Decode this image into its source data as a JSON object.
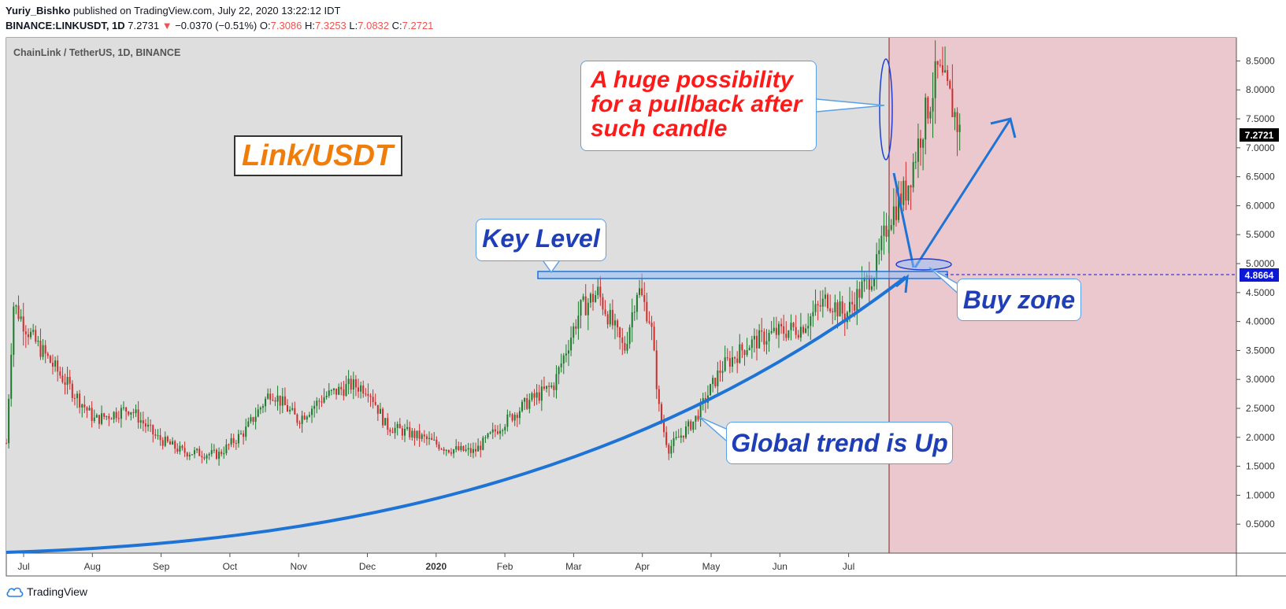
{
  "header": {
    "author": "Yuriy_Bishko",
    "published_text": "published on TradingView.com, July 22, 2020 13:22:12 IDT",
    "symbol": "BINANCE:LINKUSDT, 1D",
    "last": "7.2731",
    "change": "−0.0370 (−0.51%)",
    "open_label": "O:",
    "open": "7.3086",
    "high_label": "H:",
    "high": "7.3253",
    "low_label": "L:",
    "low": "7.0832",
    "close_label": "C:",
    "close": "7.2721"
  },
  "chart_title": "ChainLink / TetherUS, 1D, BINANCE",
  "brand_label": "Link/USDT",
  "footer": {
    "logo_text": "TradingView"
  },
  "annotations": {
    "pullback": [
      "A huge possibility",
      "for a pullback after",
      "such candle"
    ],
    "key_level": "Key Level",
    "buy_zone": "Buy zone",
    "global_trend": "Global trend is Up"
  },
  "colors": {
    "up": "#1b7a2b",
    "down": "#d12c2c",
    "plot_bg": "#dedede",
    "future_bg": "#ebc8cd",
    "arrow": "#1e73d6",
    "price_tag": "#000000",
    "level_tag": "#0d18d6"
  },
  "chart_data": {
    "type": "candlestick",
    "title": "ChainLink / TetherUS, 1D, BINANCE",
    "x_ticks": [
      "Jul",
      "Aug",
      "Sep",
      "Oct",
      "Nov",
      "Dec",
      "2020",
      "Feb",
      "Mar",
      "Apr",
      "May",
      "Jun",
      "Jul"
    ],
    "y_ticks": [
      "0.5000",
      "1.0000",
      "1.5000",
      "2.0000",
      "2.5000",
      "3.0000",
      "3.5000",
      "4.0000",
      "4.5000",
      "5.0000",
      "5.5000",
      "6.0000",
      "6.5000",
      "7.0000",
      "7.5000",
      "8.0000",
      "8.5000"
    ],
    "ylim": [
      0.0,
      8.9
    ],
    "last_price_tag": "7.2721",
    "key_level_tag": "4.8664",
    "key_level": 4.8664,
    "price_path": [
      [
        0,
        1.9
      ],
      [
        0.008,
        4.3
      ],
      [
        0.03,
        3.7
      ],
      [
        0.06,
        3.1
      ],
      [
        0.1,
        2.3
      ],
      [
        0.14,
        2.5
      ],
      [
        0.17,
        2.0
      ],
      [
        0.2,
        1.75
      ],
      [
        0.24,
        1.7
      ],
      [
        0.27,
        2.1
      ],
      [
        0.3,
        2.8
      ],
      [
        0.33,
        2.3
      ],
      [
        0.36,
        2.7
      ],
      [
        0.39,
        2.9
      ],
      [
        0.41,
        2.85
      ],
      [
        0.43,
        2.2
      ],
      [
        0.47,
        2.0
      ],
      [
        0.5,
        1.8
      ],
      [
        0.53,
        1.75
      ],
      [
        0.56,
        2.2
      ],
      [
        0.59,
        2.6
      ],
      [
        0.62,
        2.9
      ],
      [
        0.65,
        4.2
      ],
      [
        0.67,
        4.5
      ],
      [
        0.7,
        3.5
      ],
      [
        0.715,
        4.6
      ],
      [
        0.73,
        4.0
      ],
      [
        0.74,
        2.4
      ],
      [
        0.75,
        1.8
      ],
      [
        0.78,
        2.3
      ],
      [
        0.81,
        3.2
      ],
      [
        0.84,
        3.6
      ],
      [
        0.87,
        3.8
      ],
      [
        0.9,
        3.9
      ],
      [
        0.93,
        4.4
      ],
      [
        0.95,
        4.1
      ],
      [
        0.97,
        4.6
      ],
      [
        0.985,
        4.9
      ],
      [
        1.0,
        5.8
      ],
      [
        1.02,
        6.3
      ],
      [
        1.04,
        7.5
      ],
      [
        1.055,
        8.3
      ],
      [
        1.07,
        7.8
      ],
      [
        1.08,
        7.27
      ]
    ]
  }
}
